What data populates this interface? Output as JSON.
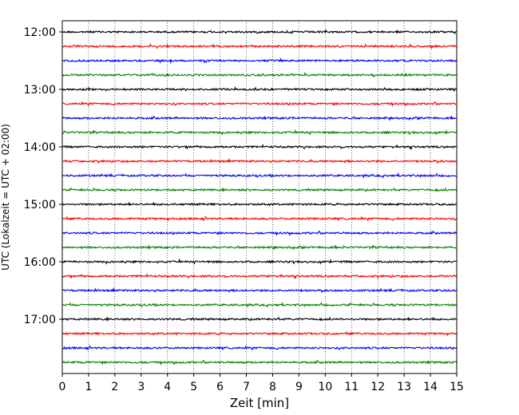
{
  "chart_data": {
    "type": "line",
    "xlabel": "Zeit  [min]",
    "ylabel": "UTC (Lokalzeit = UTC + 02:00)",
    "xlim": [
      0,
      15
    ],
    "x_ticks": [
      "0",
      "1",
      "2",
      "3",
      "4",
      "5",
      "6",
      "7",
      "8",
      "9",
      "10",
      "11",
      "12",
      "13",
      "14",
      "15"
    ],
    "y_ticks": [
      "12:00",
      "13:00",
      "14:00",
      "15:00",
      "16:00",
      "17:00"
    ],
    "grid": "vertical-dotted",
    "trace_colors": [
      "#000000",
      "#ff0000",
      "#0000ff",
      "#008000"
    ],
    "traces": [
      {
        "start": "12:00"
      },
      {
        "start": "12:15"
      },
      {
        "start": "12:30"
      },
      {
        "start": "12:45"
      },
      {
        "start": "13:00"
      },
      {
        "start": "13:15"
      },
      {
        "start": "13:30"
      },
      {
        "start": "13:45"
      },
      {
        "start": "14:00"
      },
      {
        "start": "14:15"
      },
      {
        "start": "14:30"
      },
      {
        "start": "14:45"
      },
      {
        "start": "15:00"
      },
      {
        "start": "15:15"
      },
      {
        "start": "15:30"
      },
      {
        "start": "15:45"
      },
      {
        "start": "16:00"
      },
      {
        "start": "16:15"
      },
      {
        "start": "16:30"
      },
      {
        "start": "16:45"
      },
      {
        "start": "17:00"
      },
      {
        "start": "17:15"
      },
      {
        "start": "17:30"
      },
      {
        "start": "17:45"
      }
    ]
  }
}
